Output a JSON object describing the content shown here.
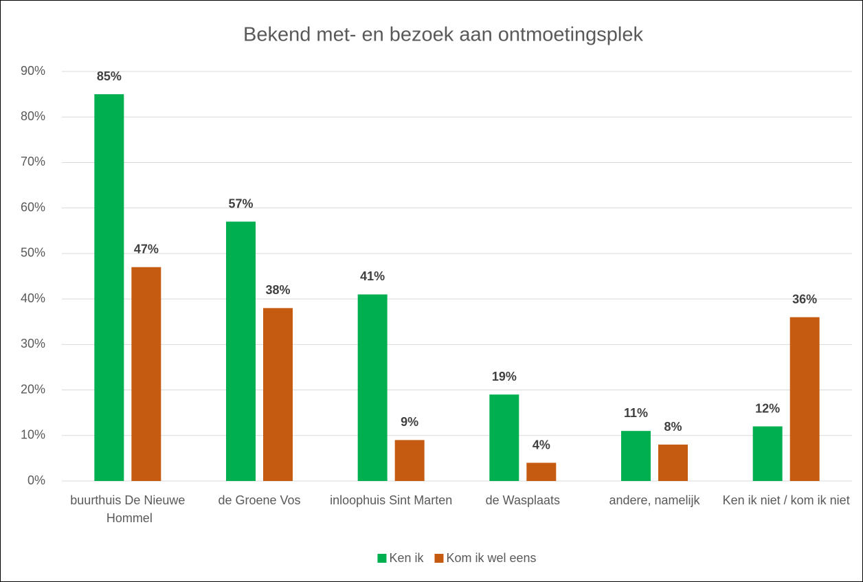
{
  "chart_data": {
    "type": "bar",
    "title": "Bekend met-  en bezoek aan ontmoetingsplek",
    "categories": [
      "buurthuis De Nieuwe Hommel",
      "de Groene Vos",
      "inloophuis Sint Marten",
      "de Wasplaats",
      "andere, namelijk",
      "Ken ik niet / kom ik niet"
    ],
    "series": [
      {
        "name": "Ken ik",
        "color": "#00b050",
        "values": [
          85,
          57,
          41,
          19,
          11,
          12
        ],
        "value_labels": [
          "85%",
          "57%",
          "41%",
          "19%",
          "11%",
          "12%"
        ]
      },
      {
        "name": "Kom ik wel eens",
        "color": "#c55a11",
        "values": [
          47,
          38,
          9,
          4,
          8,
          36
        ],
        "value_labels": [
          "47%",
          "38%",
          "9%",
          "4%",
          "8%",
          "36%"
        ]
      }
    ],
    "ylim": [
      0,
      90
    ],
    "yticks": [
      {
        "value": 0,
        "label": "0%"
      },
      {
        "value": 10,
        "label": "10%"
      },
      {
        "value": 20,
        "label": "20%"
      },
      {
        "value": 30,
        "label": "30%"
      },
      {
        "value": 40,
        "label": "40%"
      },
      {
        "value": 50,
        "label": "50%"
      },
      {
        "value": 60,
        "label": "60%"
      },
      {
        "value": 70,
        "label": "70%"
      },
      {
        "value": 80,
        "label": "80%"
      },
      {
        "value": 90,
        "label": "90%"
      }
    ],
    "grid": true,
    "legend": "bottom"
  }
}
